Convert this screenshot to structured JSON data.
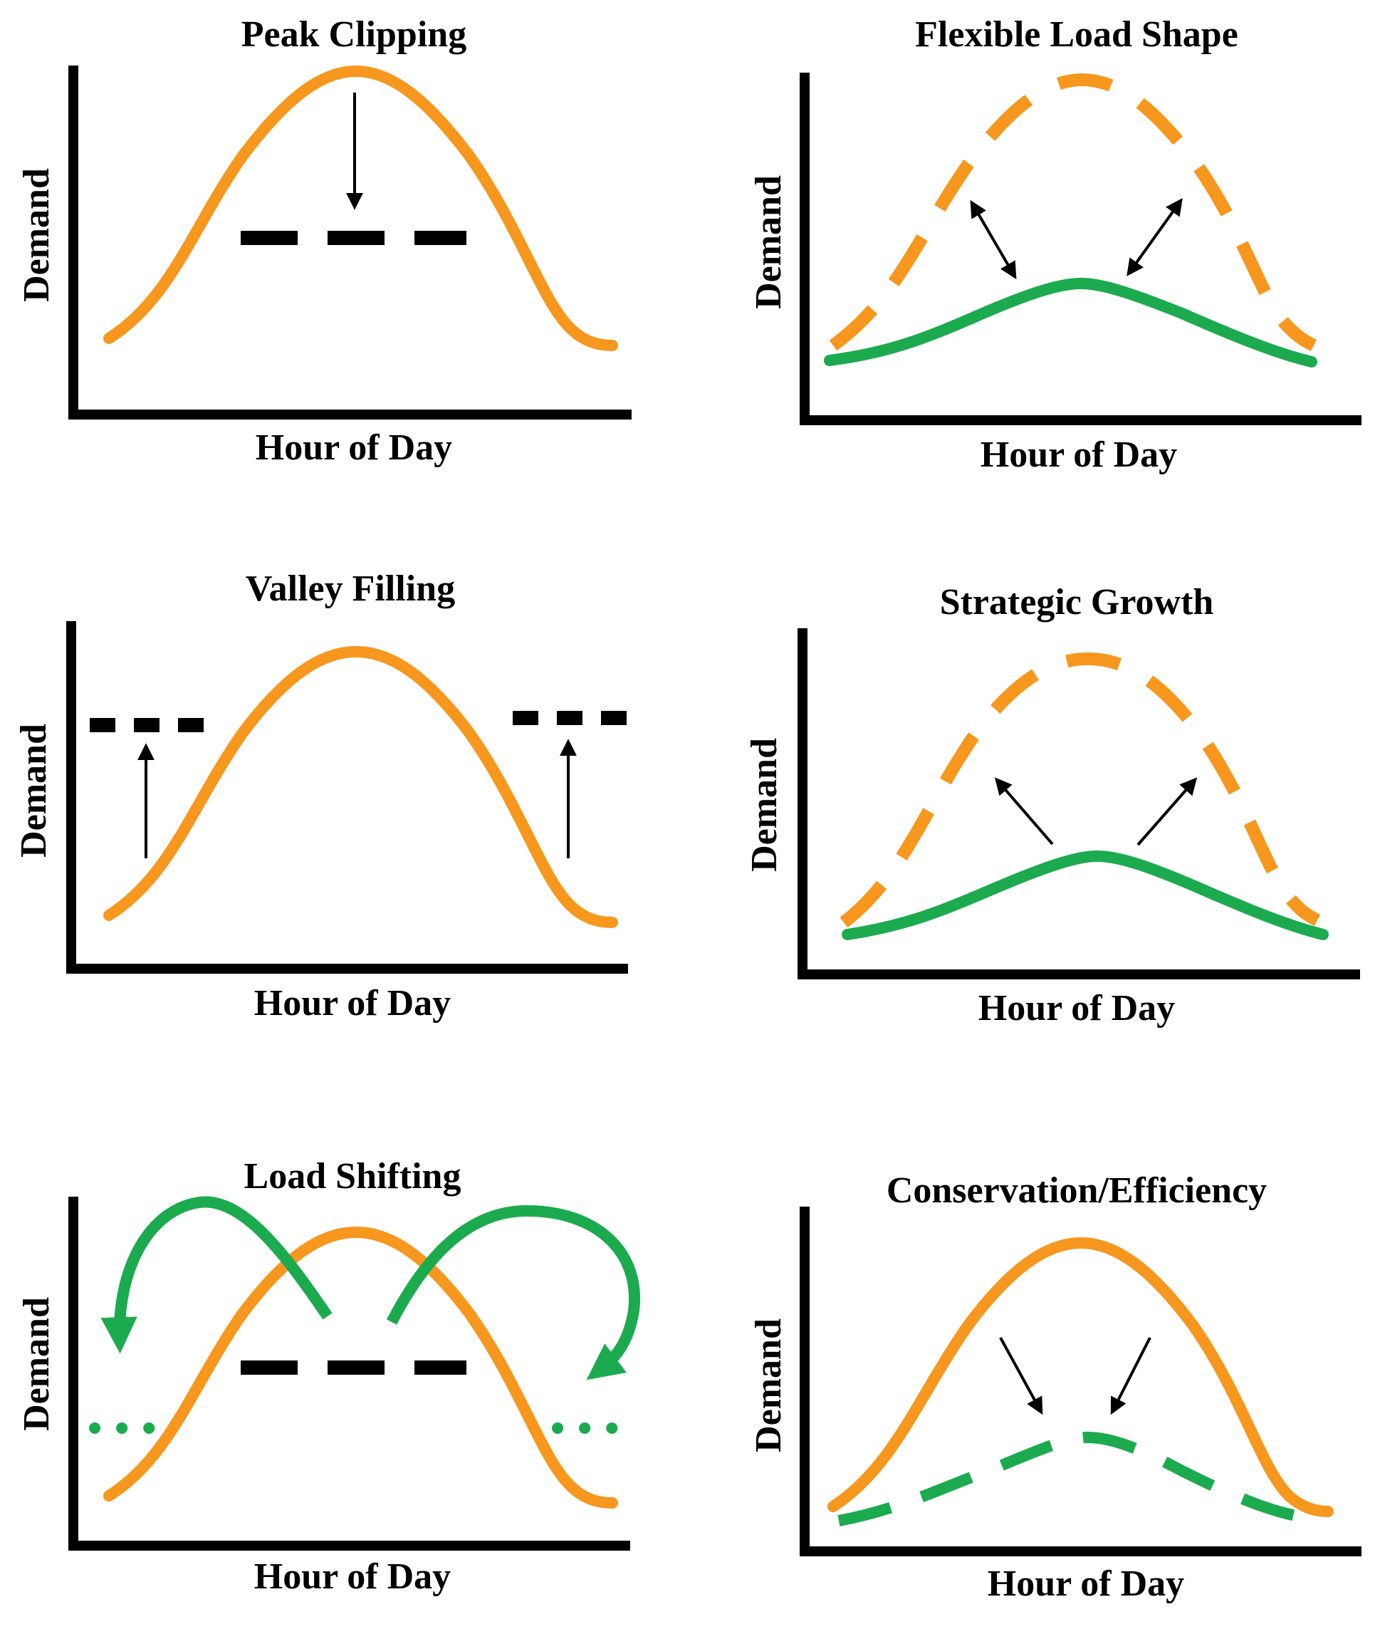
{
  "colors": {
    "orange": "#F7971D",
    "green": "#1BAB4E",
    "black": "#000000"
  },
  "panels": [
    {
      "title": "Peak Clipping",
      "xlabel": "Hour of Day",
      "ylabel": "Demand"
    },
    {
      "title": "Flexible Load Shape",
      "xlabel": "Hour of Day",
      "ylabel": "Demand"
    },
    {
      "title": "Valley Filling",
      "xlabel": "Hour of Day",
      "ylabel": "Demand"
    },
    {
      "title": "Strategic Growth",
      "xlabel": "Hour of Day",
      "ylabel": "Demand"
    },
    {
      "title": "Load Shifting",
      "xlabel": "Hour of Day",
      "ylabel": "Demand"
    },
    {
      "title": "Conservation/Efficiency",
      "xlabel": "Hour of Day",
      "ylabel": "Demand"
    }
  ]
}
